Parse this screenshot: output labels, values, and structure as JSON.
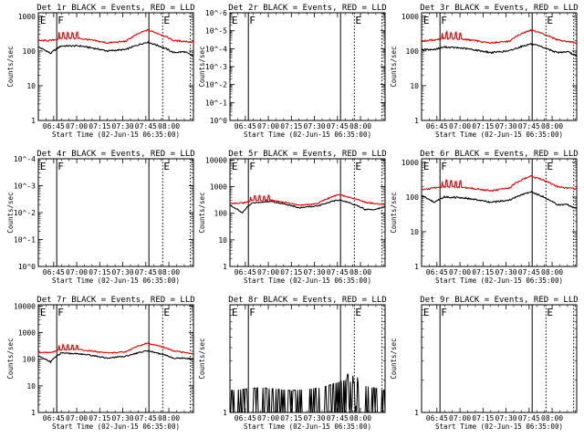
{
  "colors": {
    "events": "#000000",
    "lld": "#e00000",
    "background": "#ffffff"
  },
  "chart_data": [
    {
      "type": "line",
      "title": "Det 1r BLACK = Events, RED = LLD",
      "xlabel": "Start Time (02-Jun-15 06:35:00)",
      "ylabel": "Counts/sec",
      "xtick_labels": [
        "06:45",
        "07:00",
        "07:15",
        "07:30",
        "07:45",
        "08:00"
      ],
      "ytick_labels": [
        "1",
        "10",
        "100",
        "1000"
      ],
      "ylim_exp": [
        0,
        3.1
      ],
      "yscale": "log",
      "markers": [
        {
          "label": "E",
          "t": 0.5
        },
        {
          "label": "F",
          "t": 12
        },
        {
          "label": "E",
          "t": 81
        }
      ],
      "x": [
        0,
        8,
        15,
        27,
        45,
        57,
        71,
        88,
        95,
        101
      ],
      "series": [
        {
          "name": "Events",
          "color": "#000000",
          "values": [
            130,
            85,
            140,
            140,
            100,
            110,
            180,
            90,
            95,
            70
          ]
        },
        {
          "name": "LLD",
          "color": "#e00000",
          "values": [
            200,
            200,
            230,
            230,
            170,
            190,
            400,
            200,
            190,
            180
          ]
        }
      ]
    },
    {
      "type": "line",
      "title": "Det 2r BLACK = Events, RED = LLD",
      "xlabel": "Start Time (02-Jun-15 06:35:00)",
      "ylabel": "Counts/sec",
      "xtick_labels": [
        "06:45",
        "07:00",
        "07:15",
        "07:30",
        "07:45",
        "08:00"
      ],
      "ytick_labels": [
        "10^0",
        "10^-1",
        "10^-2",
        "10^-3",
        "10^-4",
        "10^-5",
        "10^-6"
      ],
      "ylim_exp": [
        0,
        6
      ],
      "yscale": "log",
      "markers": [
        {
          "label": "E",
          "t": 0.5
        },
        {
          "label": "F",
          "t": 12
        },
        {
          "label": "E",
          "t": 81
        }
      ],
      "x": [],
      "series": []
    },
    {
      "type": "line",
      "title": "Det 3r BLACK = Events, RED = LLD",
      "xlabel": "Start Time (02-Jun-15 06:35:00)",
      "ylabel": "Counts/sec",
      "xtick_labels": [
        "06:45",
        "07:00",
        "07:15",
        "07:30",
        "07:45",
        "08:00"
      ],
      "ytick_labels": [
        "1",
        "10",
        "100",
        "1000"
      ],
      "ylim_exp": [
        0,
        3.1
      ],
      "yscale": "log",
      "markers": [
        {
          "label": "E",
          "t": 0.5
        },
        {
          "label": "F",
          "t": 12
        },
        {
          "label": "E",
          "t": 81
        }
      ],
      "x": [
        0,
        8,
        15,
        27,
        45,
        57,
        71,
        88,
        95,
        101
      ],
      "series": [
        {
          "name": "Events",
          "color": "#000000",
          "values": [
            110,
            110,
            130,
            120,
            90,
            100,
            160,
            90,
            95,
            70
          ]
        },
        {
          "name": "LLD",
          "color": "#e00000",
          "values": [
            190,
            210,
            230,
            220,
            170,
            190,
            400,
            210,
            190,
            170
          ]
        }
      ]
    },
    {
      "type": "line",
      "title": "Det 4r BLACK = Events, RED = LLD",
      "xlabel": "Start Time (02-Jun-15 06:35:00)",
      "ylabel": "Counts/sec",
      "xtick_labels": [
        "06:45",
        "07:00",
        "07:15",
        "07:30",
        "07:45",
        "08:00"
      ],
      "ytick_labels": [
        "10^0",
        "10^-1",
        "10^-2",
        "10^-3",
        "10^-4"
      ],
      "ylim_exp": [
        0,
        4
      ],
      "yscale": "log",
      "markers": [
        {
          "label": "E",
          "t": 0.5
        },
        {
          "label": "F",
          "t": 12
        },
        {
          "label": "E",
          "t": 81
        }
      ],
      "x": [],
      "series": []
    },
    {
      "type": "line",
      "title": "Det 5r BLACK = Events, RED = LLD",
      "xlabel": "Start Time (02-Jun-15 06:35:00)",
      "ylabel": "Counts/sec",
      "xtick_labels": [
        "06:45",
        "07:00",
        "07:15",
        "07:30",
        "07:45",
        "08:00"
      ],
      "ytick_labels": [
        "1",
        "10",
        "100",
        "1000",
        "10000"
      ],
      "ylim_exp": [
        0,
        4.05
      ],
      "yscale": "log",
      "markers": [
        {
          "label": "E",
          "t": 0.5
        },
        {
          "label": "F",
          "t": 12
        },
        {
          "label": "E",
          "t": 81
        }
      ],
      "x": [
        0,
        8,
        15,
        27,
        45,
        57,
        71,
        88,
        95,
        101
      ],
      "series": [
        {
          "name": "Events",
          "color": "#000000",
          "values": [
            200,
            100,
            250,
            280,
            160,
            190,
            320,
            140,
            140,
            180
          ]
        },
        {
          "name": "LLD",
          "color": "#e00000",
          "values": [
            240,
            240,
            300,
            310,
            200,
            230,
            500,
            260,
            230,
            220
          ]
        }
      ]
    },
    {
      "type": "line",
      "title": "Det 6r BLACK = Events, RED = LLD",
      "xlabel": "Start Time (02-Jun-15 06:35:00)",
      "ylabel": "Counts/sec",
      "xtick_labels": [
        "06:45",
        "07:00",
        "07:15",
        "07:30",
        "07:45",
        "08:00"
      ],
      "ytick_labels": [
        "1",
        "10",
        "100",
        "1000"
      ],
      "ylim_exp": [
        0,
        3.1
      ],
      "yscale": "log",
      "markers": [
        {
          "label": "E",
          "t": 0.5
        },
        {
          "label": "F",
          "t": 12
        },
        {
          "label": "E",
          "t": 81
        }
      ],
      "x": [
        0,
        8,
        15,
        27,
        45,
        57,
        71,
        88,
        95,
        101
      ],
      "series": [
        {
          "name": "Events",
          "color": "#000000",
          "values": [
            110,
            70,
            100,
            95,
            70,
            80,
            140,
            60,
            60,
            45
          ]
        },
        {
          "name": "LLD",
          "color": "#e00000",
          "values": [
            160,
            180,
            200,
            190,
            150,
            180,
            400,
            200,
            180,
            170
          ]
        }
      ]
    },
    {
      "type": "line",
      "title": "Det 7r BLACK = Events, RED = LLD",
      "xlabel": "Start Time (02-Jun-15 06:35:00)",
      "ylabel": "Counts/sec",
      "xtick_labels": [
        "06:45",
        "07:00",
        "07:15",
        "07:30",
        "07:45",
        "08:00"
      ],
      "ytick_labels": [
        "1",
        "10",
        "100",
        "1000",
        "10000"
      ],
      "ylim_exp": [
        0,
        4.05
      ],
      "yscale": "log",
      "markers": [
        {
          "label": "E",
          "t": 0.5
        },
        {
          "label": "F",
          "t": 12
        },
        {
          "label": "E",
          "t": 81
        }
      ],
      "x": [
        0,
        8,
        15,
        27,
        45,
        57,
        71,
        88,
        95,
        101
      ],
      "series": [
        {
          "name": "Events",
          "color": "#000000",
          "values": [
            130,
            80,
            170,
            160,
            110,
            130,
            210,
            110,
            110,
            100
          ]
        },
        {
          "name": "LLD",
          "color": "#e00000",
          "values": [
            180,
            180,
            230,
            230,
            170,
            190,
            400,
            210,
            180,
            160
          ]
        }
      ]
    },
    {
      "type": "line",
      "title": "Det 8r BLACK = Events, RED = LLD",
      "xlabel": "Start Time (02-Jun-15 06:35:00)",
      "ylabel": "Counts/sec",
      "xtick_labels": [
        "06:45",
        "07:00",
        "07:15",
        "07:30",
        "07:45",
        "08:00"
      ],
      "ytick_labels": [
        "1"
      ],
      "ylim_exp": [
        0,
        1
      ],
      "yscale": "log",
      "markers": [
        {
          "label": "E",
          "t": 0.5
        },
        {
          "label": "F",
          "t": 12
        },
        {
          "label": "E",
          "t": 81
        }
      ],
      "x": [
        0,
        20,
        40,
        60,
        75,
        85,
        101
      ],
      "series": [
        {
          "name": "Events",
          "color": "#000000",
          "values": [
            1.6,
            1.7,
            1.6,
            1.7,
            2.0,
            1.8,
            1.6
          ]
        }
      ]
    },
    {
      "type": "line",
      "title": "Det 9r BLACK = Events, RED = LLD",
      "xlabel": "Start Time (02-Jun-15 06:35:00)",
      "ylabel": "Counts/sec",
      "xtick_labels": [
        "06:45",
        "07:00",
        "07:15",
        "07:30",
        "07:45",
        "08:00"
      ],
      "ytick_labels": [
        "1"
      ],
      "ylim_exp": [
        0,
        1
      ],
      "yscale": "log",
      "markers": [
        {
          "label": "E",
          "t": 0.5
        },
        {
          "label": "F",
          "t": 12
        },
        {
          "label": "E",
          "t": 81
        }
      ],
      "x": [],
      "series": []
    }
  ]
}
